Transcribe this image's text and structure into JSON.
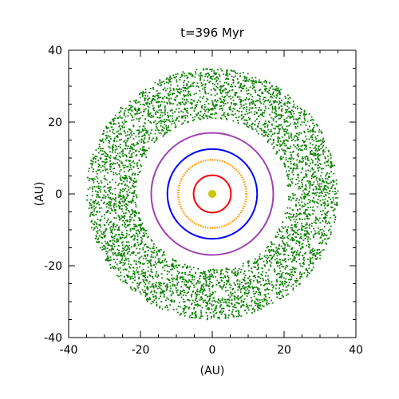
{
  "chart_data": {
    "type": "scatter",
    "title": "t=396 Myr",
    "xlabel": "(AU)",
    "ylabel": "(AU)",
    "xlim": [
      -40,
      40
    ],
    "ylim": [
      -40,
      40
    ],
    "x_ticks": [
      "-40",
      "-20",
      "0",
      "20",
      "40"
    ],
    "y_ticks": [
      "-40",
      "-20",
      "0",
      "20",
      "40"
    ],
    "grid": false,
    "legend": "none",
    "star": {
      "x": 0,
      "y": 0,
      "color": "#c8c800"
    },
    "orbits": [
      {
        "radius": 5.2,
        "color": "#ff0000",
        "style": "solid"
      },
      {
        "radius": 9.5,
        "color": "#ff9900",
        "style": "dotted"
      },
      {
        "radius": 12.5,
        "color": "#0000ff",
        "style": "solid"
      },
      {
        "radius": 17,
        "color": "#a040b0",
        "style": "solid"
      }
    ],
    "disk": {
      "inner_radius": 21,
      "outer_radius": 35,
      "color": "#0a8000",
      "approx_points": 4500
    }
  }
}
